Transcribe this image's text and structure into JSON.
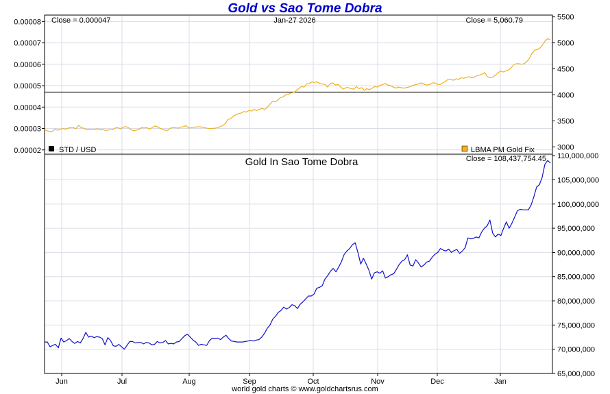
{
  "title": "Gold vs Sao Tome Dobra",
  "footer": "world gold charts © www.goldchartsrus.com",
  "colors": {
    "gold": "#f0b020",
    "dobra": "#1010cc",
    "grid": "#d9dde8",
    "axis": "#000000"
  },
  "chart_data": [
    {
      "type": "line",
      "panel": "top",
      "date_label": "Jan-27  2026",
      "left_header": "Close = 0.000047",
      "right_header": "Close = 5,060.79",
      "left_axis_ticks": [
        "0.00008",
        "0.00007",
        "0.00006",
        "0.00005",
        "0.00004",
        "0.00003",
        "0.00002"
      ],
      "left_axis_range": [
        1.8e-05,
        8.3e-05
      ],
      "right_axis_ticks": [
        "5500",
        "5000",
        "4500",
        "4000",
        "3500",
        "3000"
      ],
      "right_axis_range": [
        2860,
        5535
      ],
      "std_value": 4.7e-05,
      "legend": [
        {
          "label": "STD / USD",
          "color": "#000000",
          "position": "bottom-left"
        },
        {
          "label": "LBMA PM Gold Fix",
          "color": "#f0b020",
          "position": "bottom-right"
        }
      ],
      "series": [
        {
          "name": "LBMA PM Gold Fix",
          "axis": "right",
          "values": [
            3330,
            3310,
            3295,
            3300,
            3345,
            3320,
            3335,
            3355,
            3340,
            3360,
            3375,
            3370,
            3350,
            3415,
            3370,
            3360,
            3330,
            3340,
            3330,
            3330,
            3350,
            3330,
            3335,
            3320,
            3320,
            3330,
            3330,
            3365,
            3370,
            3345,
            3380,
            3390,
            3370,
            3330,
            3310,
            3320,
            3340,
            3370,
            3365,
            3375,
            3340,
            3370,
            3400,
            3390,
            3360,
            3340,
            3320,
            3320,
            3360,
            3375,
            3370,
            3360,
            3380,
            3390,
            3410,
            3360,
            3370,
            3380,
            3380,
            3390,
            3380,
            3370,
            3360,
            3350,
            3355,
            3360,
            3370,
            3390,
            3410,
            3450,
            3530,
            3540,
            3590,
            3620,
            3640,
            3650,
            3680,
            3670,
            3700,
            3690,
            3720,
            3700,
            3720,
            3740,
            3720,
            3760,
            3820,
            3880,
            3870,
            3900,
            3950,
            3960,
            4000,
            4010,
            4040,
            4050,
            4080,
            4120,
            4160,
            4150,
            4210,
            4220,
            4250,
            4240,
            4250,
            4220,
            4210,
            4200,
            4150,
            4220,
            4230,
            4190,
            4200,
            4150,
            4110,
            4140,
            4140,
            4120,
            4110,
            4160,
            4120,
            4140,
            4090,
            4120,
            4100,
            4130,
            4160,
            4150,
            4180,
            4200,
            4220,
            4190,
            4180,
            4150,
            4130,
            4150,
            4140,
            4130,
            4140,
            4150,
            4170,
            4190,
            4200,
            4220,
            4230,
            4200,
            4190,
            4200,
            4230,
            4230,
            4200,
            4200,
            4230,
            4260,
            4300,
            4300,
            4280,
            4310,
            4300,
            4330,
            4320,
            4340,
            4350,
            4330,
            4340,
            4370,
            4380,
            4400,
            4430,
            4350,
            4330,
            4340,
            4380,
            4420,
            4460,
            4440,
            4460,
            4480,
            4520,
            4580,
            4600,
            4600,
            4590,
            4600,
            4640,
            4700,
            4800,
            4860,
            4870,
            4900,
            4960,
            5040,
            5080,
            5060
          ]
        }
      ]
    },
    {
      "type": "line",
      "panel": "bottom",
      "title": "Gold In Sao Tome Dobra",
      "right_header": "Close = 108,437,754.45",
      "right_axis_ticks": [
        "110,000,000",
        "105,000,000",
        "100,000,000",
        "95,000,000",
        "90,000,000",
        "85,000,000",
        "80,000,000",
        "75,000,000",
        "70,000,000",
        "65,000,000"
      ],
      "right_axis_range": [
        65000000,
        110300000
      ],
      "x_axis_ticks": [
        "Jun",
        "Jul",
        "Aug",
        "Sep",
        "Oct",
        "Nov",
        "Dec",
        "Jan"
      ],
      "series": [
        {
          "name": "Gold In Sao Tome Dobra",
          "axis": "right",
          "values": [
            71.5,
            71.5,
            70.5,
            70.8,
            71.0,
            70.3,
            72.3,
            71.5,
            71.8,
            72.2,
            71.6,
            71.2,
            71.6,
            71.3,
            72.2,
            73.5,
            72.5,
            72.7,
            72.4,
            72.6,
            72.5,
            72.2,
            70.9,
            72.4,
            71.8,
            70.7,
            70.6,
            71.0,
            70.5,
            70.0,
            70.8,
            71.6,
            71.6,
            71.3,
            71.4,
            71.4,
            71.1,
            71.4,
            71.3,
            70.9,
            71.0,
            71.6,
            71.3,
            71.4,
            71.8,
            71.1,
            71.2,
            71.1,
            71.5,
            71.6,
            72.2,
            72.8,
            73.1,
            72.5,
            71.9,
            71.5,
            70.8,
            71.0,
            70.9,
            70.8,
            71.8,
            72.3,
            72.2,
            72.3,
            72.0,
            72.5,
            72.9,
            72.2,
            71.7,
            71.6,
            71.5,
            71.5,
            71.5,
            71.6,
            71.7,
            71.8,
            71.7,
            71.9,
            72.0,
            72.5,
            73.3,
            74.3,
            75.0,
            76.2,
            76.8,
            77.6,
            78.0,
            78.7,
            78.3,
            78.6,
            79.2,
            79.0,
            78.4,
            79.3,
            79.8,
            80.4,
            81.0,
            81.0,
            81.4,
            82.6,
            82.8,
            83.1,
            84.5,
            85.2,
            86.1,
            86.7,
            86.0,
            87.0,
            88.1,
            89.6,
            90.3,
            90.8,
            91.6,
            92.0,
            90.0,
            87.6,
            88.8,
            87.6,
            86.3,
            84.5,
            85.8,
            86.0,
            85.7,
            86.2,
            84.7,
            85.0,
            85.4,
            85.6,
            86.5,
            87.5,
            88.2,
            88.5,
            89.5,
            87.4,
            87.2,
            88.5,
            87.8,
            87.0,
            87.4,
            88.0,
            88.2,
            89.0,
            89.6,
            90.0,
            90.8,
            90.5,
            90.3,
            90.7,
            90.0,
            90.4,
            90.6,
            89.8,
            90.3,
            91.0,
            93.0,
            92.8,
            92.9,
            93.2,
            93.0,
            94.2,
            95.0,
            95.5,
            96.7,
            94.0,
            93.2,
            93.8,
            93.5,
            95.0,
            96.3,
            95.0,
            96.0,
            97.3,
            98.6,
            98.9,
            98.8,
            98.8,
            98.8,
            99.8,
            101.5,
            103.5,
            104.0,
            105.5,
            108.2,
            109.0,
            108.44
          ]
        }
      ]
    }
  ]
}
